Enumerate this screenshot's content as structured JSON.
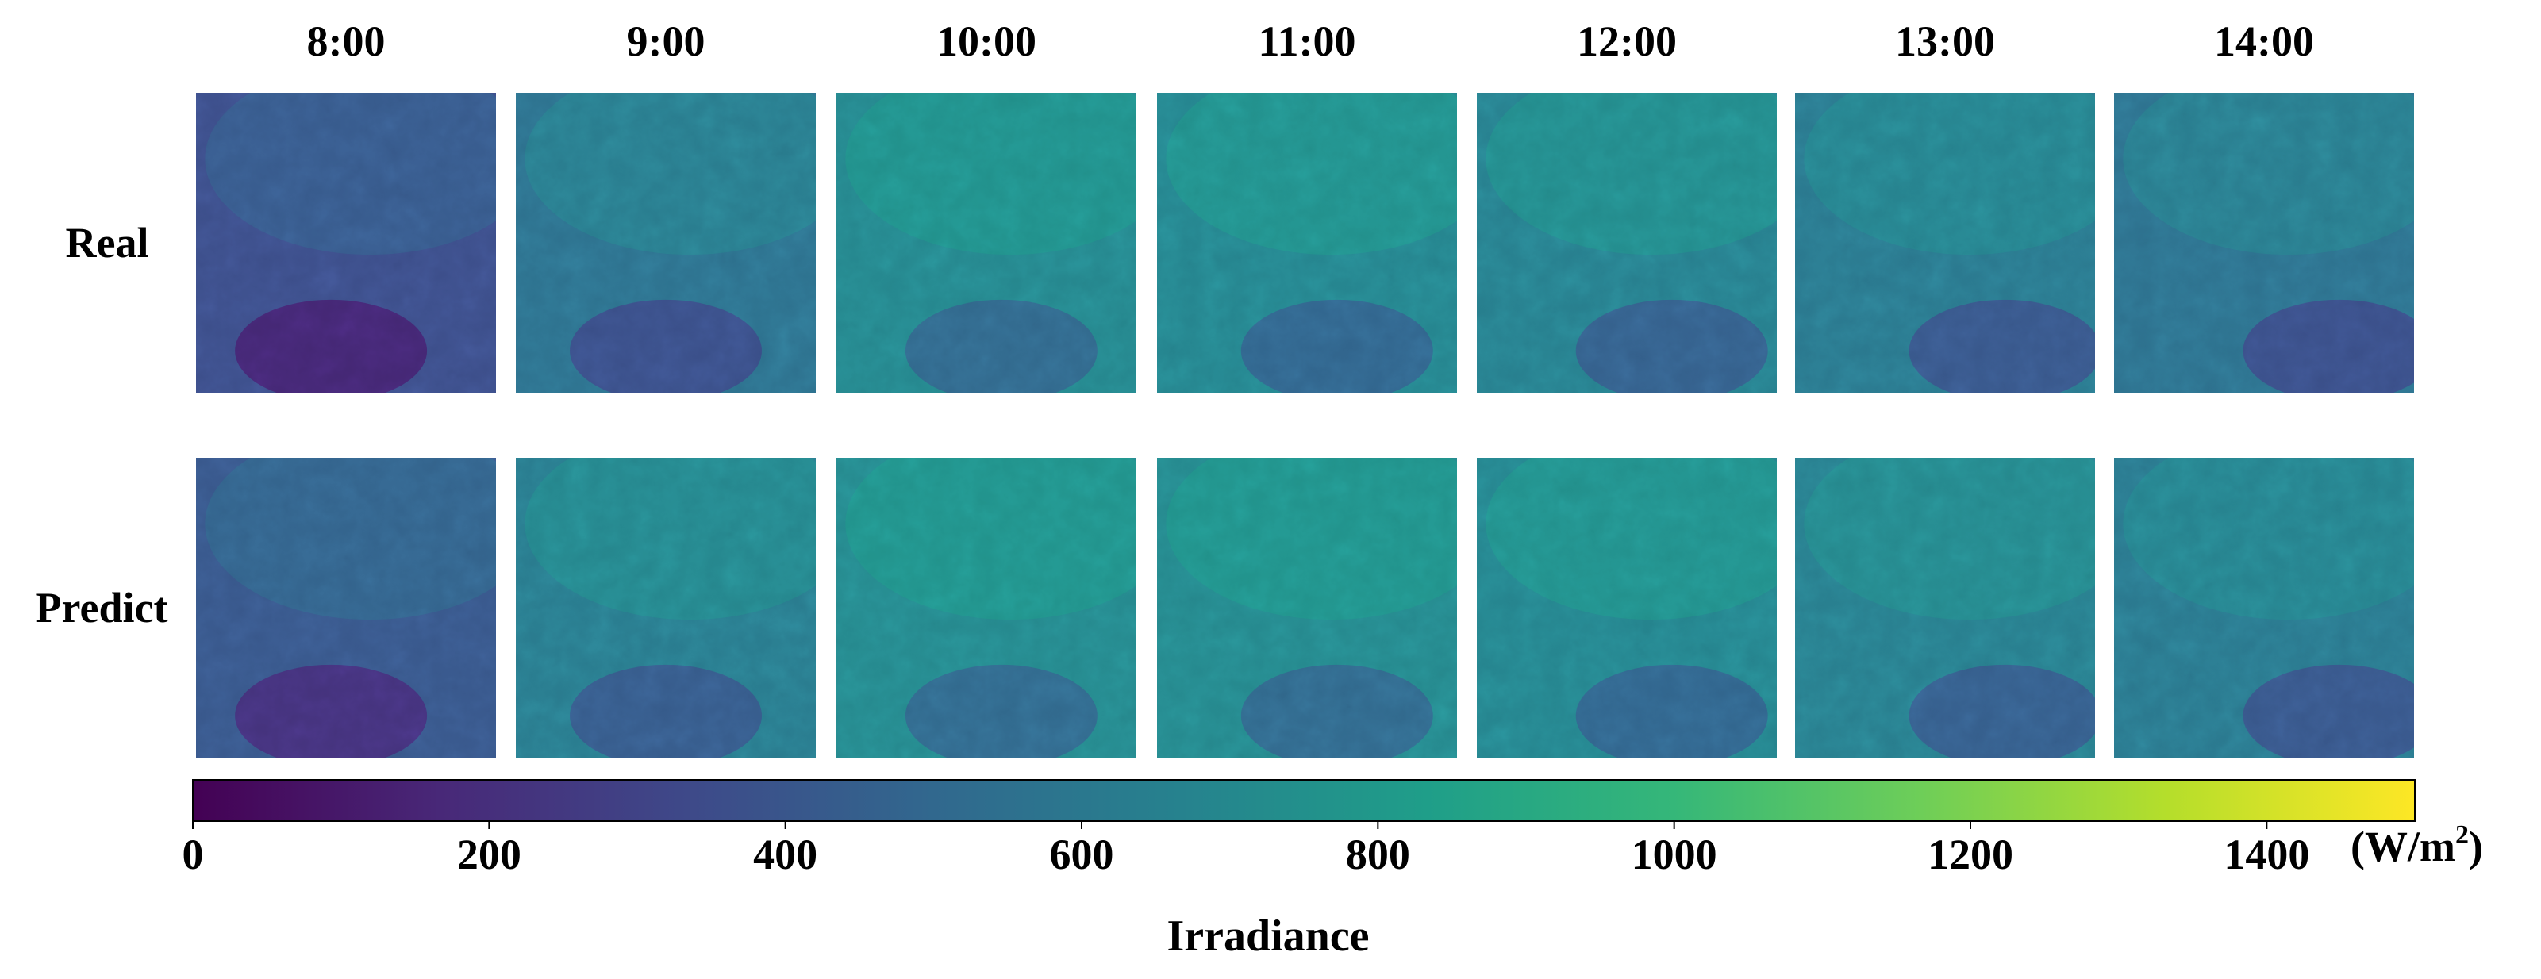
{
  "chart_data": {
    "type": "heatmap",
    "time_labels": [
      "8:00",
      "9:00",
      "10:00",
      "11:00",
      "12:00",
      "13:00",
      "14:00"
    ],
    "row_labels": [
      "Real",
      "Predict"
    ],
    "panel_mean_irradiance": {
      "Real": [
        360,
        560,
        690,
        680,
        650,
        600,
        560
      ],
      "Predict": [
        410,
        620,
        700,
        700,
        680,
        640,
        600
      ]
    },
    "colorbar": {
      "colormap": "viridis",
      "range": [
        0,
        1500
      ],
      "ticks": [
        0,
        200,
        400,
        600,
        800,
        1000,
        1200,
        1400
      ],
      "tick_labels": [
        "0",
        "200",
        "400",
        "600",
        "800",
        "1000",
        "1200",
        "1400"
      ],
      "unit_prefix": "(W/m",
      "unit_superscript": "2",
      "unit_suffix": ")",
      "label": "Irradiance"
    },
    "colors": {
      "viridis_stops": [
        "#440154",
        "#482878",
        "#3e4989",
        "#31688e",
        "#26828e",
        "#1f9e89",
        "#35b779",
        "#6ece58",
        "#b5de2b",
        "#fde725"
      ]
    }
  }
}
